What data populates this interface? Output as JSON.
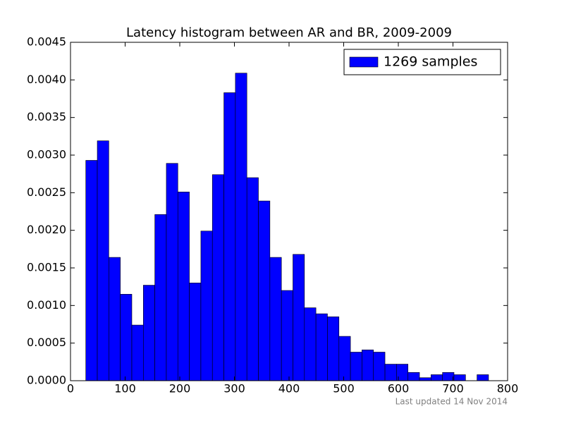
{
  "chart_data": {
    "type": "histogram",
    "title": "Latency histogram between AR and BR, 2009-2009",
    "footnote": "Last updated 14 Nov 2014",
    "series": [
      {
        "name": "1269 samples",
        "color": "#0000ff",
        "values": [
          0.00293,
          0.00319,
          0.00164,
          0.00115,
          0.00074,
          0.00127,
          0.00221,
          0.00289,
          0.00251,
          0.0013,
          0.00199,
          0.00274,
          0.00383,
          0.00409,
          0.0027,
          0.00239,
          0.00164,
          0.0012,
          0.00168,
          0.00097,
          0.00089,
          0.00085,
          0.00059,
          0.00038,
          0.00041,
          0.00038,
          0.00022,
          0.00022,
          0.00011,
          4e-05,
          8e-05,
          0.00011,
          8e-05,
          0,
          8e-05
        ]
      }
    ],
    "bins": [
      28,
      49.06,
      70.12,
      91.18,
      112.24,
      133.3,
      154.36,
      175.42,
      196.48,
      217.54,
      238.6,
      259.66,
      280.72,
      301.78,
      322.84,
      343.9,
      364.96,
      386.02,
      407.08,
      428.14,
      449.2,
      470.26,
      491.32,
      512.38,
      533.44,
      554.5,
      575.56,
      596.62,
      617.68,
      638.74,
      659.8,
      680.86,
      701.92,
      722.98,
      744.04,
      765.1
    ],
    "xlim": [
      0,
      800
    ],
    "xticks": [
      0,
      100,
      200,
      300,
      400,
      500,
      600,
      700,
      800
    ],
    "ylim": [
      0,
      0.0045
    ],
    "yticks": [
      {
        "value": 0,
        "label": "0.0000"
      },
      {
        "value": 0.0005,
        "label": "0.0005"
      },
      {
        "value": 0.001,
        "label": "0.0010"
      },
      {
        "value": 0.0015,
        "label": "0.0015"
      },
      {
        "value": 0.002,
        "label": "0.0020"
      },
      {
        "value": 0.0025,
        "label": "0.0025"
      },
      {
        "value": 0.003,
        "label": "0.0030"
      },
      {
        "value": 0.0035,
        "label": "0.0035"
      },
      {
        "value": 0.004,
        "label": "0.0040"
      },
      {
        "value": 0.0045,
        "label": "0.0045"
      }
    ],
    "legend": "upper right",
    "grid": false
  }
}
